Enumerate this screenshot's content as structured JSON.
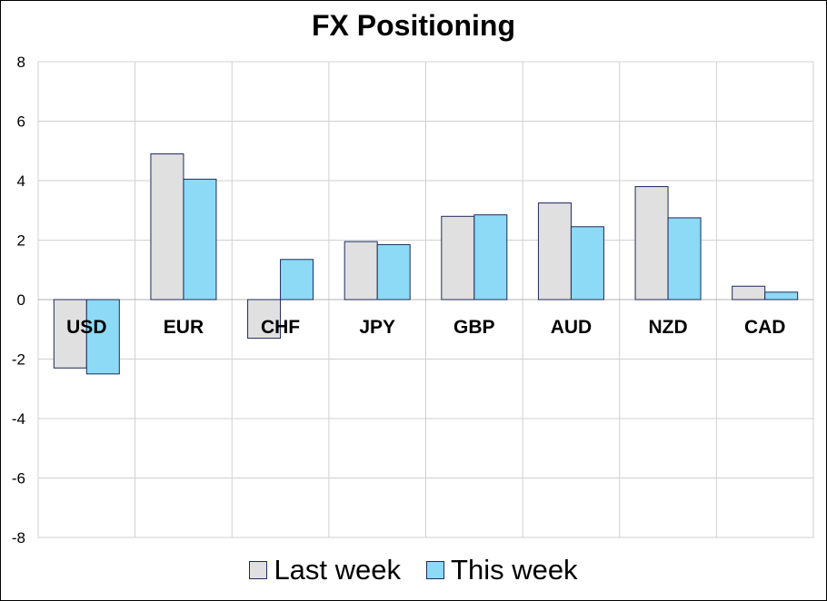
{
  "chart_data": {
    "type": "bar",
    "title": "FX Positioning",
    "xlabel": "",
    "ylabel": "",
    "categories": [
      "USD",
      "EUR",
      "CHF",
      "JPY",
      "GBP",
      "AUD",
      "NZD",
      "CAD"
    ],
    "series": [
      {
        "name": "Last week",
        "color": "#e0e0e0",
        "values": [
          -2.3,
          4.9,
          -1.3,
          1.95,
          2.8,
          3.25,
          3.8,
          0.45
        ]
      },
      {
        "name": "This week",
        "color": "#8cdaf5",
        "values": [
          -2.5,
          4.05,
          1.35,
          1.85,
          2.85,
          2.45,
          2.75,
          0.25
        ]
      }
    ],
    "ylim": [
      -8,
      8
    ],
    "yticks": [
      "8",
      "6",
      "4",
      "2",
      "0",
      "-2",
      "-4",
      "-6",
      "-8"
    ],
    "grid": true,
    "legend_position": "bottom",
    "bar_edge_color": "#1f2a5c"
  }
}
